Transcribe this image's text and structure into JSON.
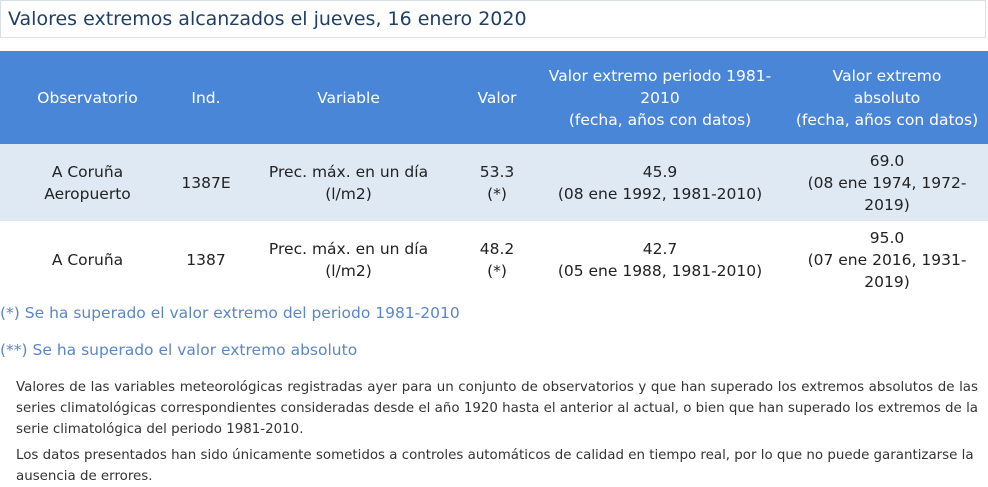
{
  "page_title": "Valores extremos alcanzados el jueves, 16 enero 2020",
  "table": {
    "headers": [
      "Observatorio",
      "Ind.",
      "Variable",
      "Valor",
      "Valor extremo periodo 1981-2010 (fecha, años con datos)",
      "Valor extremo absoluto (fecha, años con datos)"
    ],
    "header_lines": {
      "periodo": [
        "Valor extremo periodo 1981-",
        "2010",
        "(fecha, años con datos)"
      ],
      "absoluto": [
        "Valor extremo",
        "absoluto",
        "(fecha, años con datos)"
      ]
    },
    "rows": [
      {
        "observatorio": [
          "A Coruña",
          "Aeropuerto"
        ],
        "ind": "1387E",
        "variable": [
          "Prec. máx. en un día",
          "(l/m2)"
        ],
        "valor": [
          "53.3",
          "(*)"
        ],
        "periodo": [
          "45.9",
          "(08 ene 1992, 1981-2010)"
        ],
        "absoluto": [
          "69.0",
          "(08 ene 1974, 1972-",
          "2019)"
        ]
      },
      {
        "observatorio": [
          "A Coruña"
        ],
        "ind": "1387",
        "variable": [
          "Prec. máx. en un día",
          "(l/m2)"
        ],
        "valor": [
          "48.2",
          "(*)"
        ],
        "periodo": [
          "42.7",
          "(05 ene 1988, 1981-2010)"
        ],
        "absoluto": [
          "95.0",
          "(07 ene 2016, 1931-",
          "2019)"
        ]
      }
    ]
  },
  "notes": {
    "note1": "(*) Se ha superado el valor extremo del periodo 1981-2010",
    "note2": "(**) Se ha superado el valor extremo absoluto"
  },
  "description": {
    "p1": "Valores de las variables meteorológicas registradas ayer para un conjunto de observatorios y que han superado los extremos absolutos de las series climatológicas correspondientes consideradas desde el año 1920 hasta el anterior al actual, o bien que han superado los extremos de la serie climatológica del periodo 1981-2010.",
    "p2": "Los datos presentados han sido únicamente sometidos a controles automáticos de calidad en tiempo real, por lo que no puede garantizarse la ausencia de errores."
  },
  "colors": {
    "header_bg": "#4a86d8",
    "row_alt_bg": "#dfe9f4",
    "title_color": "#1f3f66",
    "note_color": "#5b86c6"
  }
}
